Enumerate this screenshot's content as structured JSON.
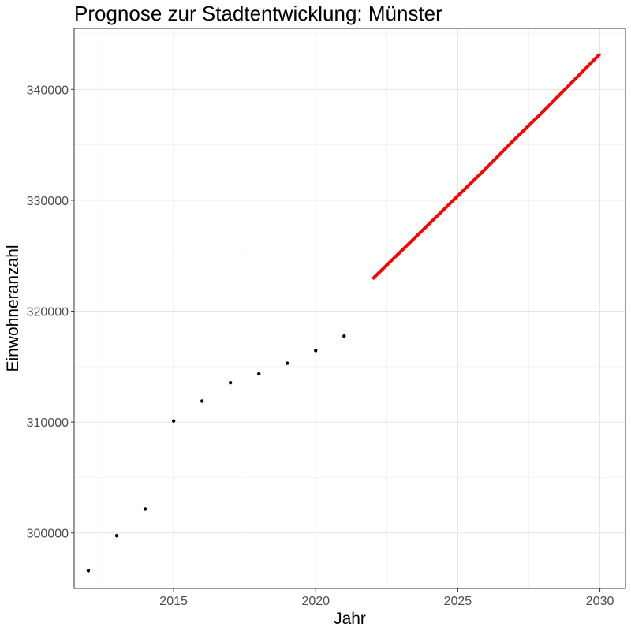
{
  "chart_data": {
    "type": "scatter",
    "title": "Prognose zur Stadtentwicklung: Münster",
    "xlabel": "Jahr",
    "ylabel": "Einwohneranzahl",
    "xlim": [
      2011.5,
      2030.9
    ],
    "ylim": [
      295000,
      345500
    ],
    "x_ticks": [
      2015,
      2020,
      2025,
      2030
    ],
    "x_tick_labels": [
      "2015",
      "2020",
      "2025",
      "2030"
    ],
    "y_ticks": [
      300000,
      310000,
      320000,
      330000,
      340000
    ],
    "y_tick_labels": [
      "300000",
      "310000",
      "320000",
      "330000",
      "340000"
    ],
    "grid": true,
    "series": [
      {
        "kind": "points",
        "color": "#000000",
        "x": [
          2012,
          2013,
          2014,
          2015,
          2016,
          2017,
          2018,
          2019,
          2020,
          2021
        ],
        "y": [
          296600,
          299750,
          302150,
          310100,
          311900,
          313550,
          314350,
          315300,
          316450,
          317750
        ]
      },
      {
        "kind": "line",
        "color": "#ff0000",
        "x": [
          2022,
          2023,
          2024,
          2025,
          2026,
          2027,
          2028,
          2029,
          2030
        ],
        "y": [
          322900,
          325400,
          327900,
          330400,
          332900,
          335500,
          338000,
          340600,
          343200
        ]
      }
    ]
  }
}
